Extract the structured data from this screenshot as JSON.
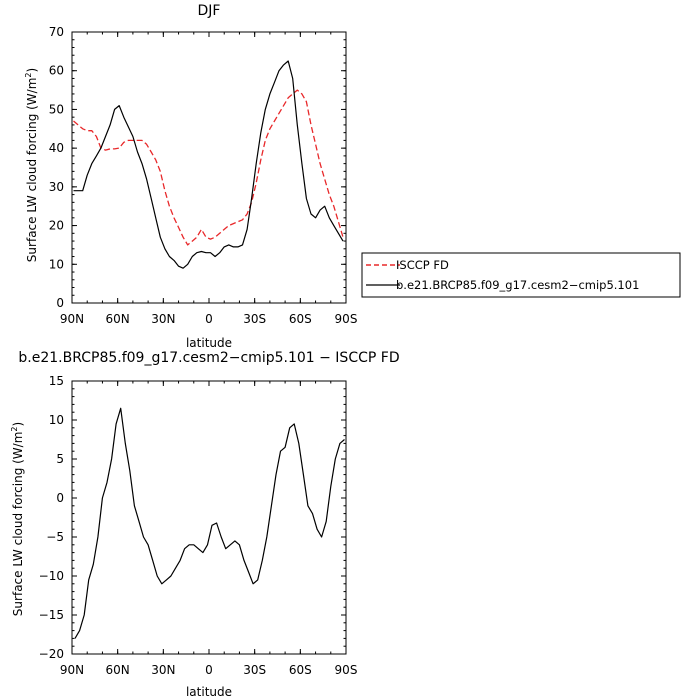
{
  "chart_data": [
    {
      "type": "line",
      "title": "DJF",
      "xlabel": "latitude",
      "ylabel": "Surface LW cloud forcing (W/m²)",
      "ylabel_main": "Surface LW cloud forcing (W/m",
      "ylabel_sup": "2",
      "ylabel_end": ")",
      "xlim": [
        90,
        -90
      ],
      "ylim": [
        0,
        70
      ],
      "x_ticks": [
        90,
        60,
        30,
        0,
        -30,
        -60,
        -90
      ],
      "x_tick_labels": [
        "90N",
        "60N",
        "30N",
        "0",
        "30S",
        "60S",
        "90S"
      ],
      "y_ticks": [
        0,
        10,
        20,
        30,
        40,
        50,
        60,
        70
      ],
      "y_tick_labels": [
        "0",
        "10",
        "20",
        "30",
        "40",
        "50",
        "60",
        "70"
      ],
      "legend_position": "right",
      "series": [
        {
          "name": "ISCCP FD",
          "color": "#e8282a",
          "dashed": true,
          "x": [
            89,
            86,
            83,
            80,
            77,
            74,
            71,
            68,
            65,
            62,
            59,
            56,
            53,
            50,
            47,
            44,
            41,
            38,
            35,
            32,
            29,
            26,
            23,
            20,
            17,
            14,
            11,
            8,
            5,
            2,
            -1,
            -4,
            -7,
            -10,
            -13,
            -16,
            -19,
            -22,
            -25,
            -28,
            -31,
            -34,
            -37,
            -40,
            -43,
            -46,
            -49,
            -52,
            -55,
            -58,
            -61,
            -64,
            -67,
            -70,
            -73,
            -76,
            -79,
            -82,
            -85,
            -88
          ],
          "y": [
            47,
            46,
            45,
            44.5,
            44.5,
            43,
            40,
            39.5,
            39.8,
            39.8,
            40,
            41.5,
            42,
            42,
            42,
            42,
            41,
            39,
            37,
            34,
            29,
            25,
            22,
            19.5,
            17,
            15,
            16,
            17,
            19,
            17,
            16.5,
            17,
            18,
            19,
            20,
            20.5,
            21,
            21.5,
            23,
            26,
            31,
            37,
            42,
            45,
            47,
            49,
            51,
            53,
            54,
            55,
            54,
            52,
            46,
            41,
            36,
            32,
            28,
            25,
            21,
            17
          ]
        },
        {
          "name": "b.e21.BRCP85.f09_g17.cesm2−cmip5.101",
          "color": "#000000",
          "dashed": false,
          "x": [
            89,
            86,
            83,
            80,
            77,
            74,
            71,
            68,
            65,
            62,
            59,
            56,
            53,
            50,
            47,
            44,
            41,
            38,
            35,
            32,
            29,
            26,
            23,
            20,
            17,
            14,
            11,
            8,
            5,
            2,
            -1,
            -4,
            -7,
            -10,
            -13,
            -16,
            -19,
            -22,
            -25,
            -28,
            -31,
            -34,
            -37,
            -40,
            -43,
            -46,
            -49,
            -52,
            -55,
            -58,
            -61,
            -64,
            -67,
            -70,
            -73,
            -76,
            -79,
            -82,
            -85,
            -88
          ],
          "y": [
            29,
            29,
            29,
            33,
            36,
            38,
            40,
            43,
            46,
            50,
            51,
            48,
            45.5,
            43,
            39,
            36,
            32,
            27,
            22,
            17,
            14,
            12,
            11,
            9.5,
            9,
            10,
            12,
            13,
            13.3,
            13,
            13,
            12,
            13,
            14.5,
            15,
            14.5,
            14.5,
            15,
            19,
            27,
            36,
            44,
            50,
            54,
            57,
            60,
            61.5,
            62.5,
            58,
            46,
            36,
            27,
            23,
            22,
            24,
            25,
            22,
            20,
            18,
            16
          ]
        }
      ]
    },
    {
      "type": "line",
      "title": "b.e21.BRCP85.f09_g17.cesm2−cmip5.101 − ISCCP FD",
      "xlabel": "latitude",
      "ylabel": "Surface LW cloud forcing (W/m²)",
      "ylabel_main": "Surface LW cloud forcing (W/m",
      "ylabel_sup": "2",
      "ylabel_end": ")",
      "xlim": [
        90,
        -90
      ],
      "ylim": [
        -20,
        15
      ],
      "x_ticks": [
        90,
        60,
        30,
        0,
        -30,
        -60,
        -90
      ],
      "x_tick_labels": [
        "90N",
        "60N",
        "30N",
        "0",
        "30S",
        "60S",
        "90S"
      ],
      "y_ticks": [
        -20,
        -15,
        -10,
        -5,
        0,
        5,
        10,
        15
      ],
      "y_tick_labels": [
        "−20",
        "−15",
        "−10",
        "−5",
        "0",
        "5",
        "10",
        "15"
      ],
      "series": [
        {
          "color": "#000000",
          "dashed": false,
          "x": [
            88,
            85,
            82,
            79,
            76,
            73,
            70,
            67,
            64,
            61,
            58,
            55,
            52,
            49,
            46,
            43,
            40,
            37,
            34,
            31,
            28,
            25,
            22,
            19,
            16,
            13,
            10,
            7,
            4,
            1,
            -2,
            -5,
            -8,
            -11,
            -14,
            -17,
            -20,
            -23,
            -26,
            -29,
            -32,
            -35,
            -38,
            -41,
            -44,
            -47,
            -50,
            -53,
            -56,
            -59,
            -62,
            -65,
            -68,
            -71,
            -74,
            -77,
            -80,
            -83,
            -86,
            -89
          ],
          "y": [
            -18,
            -17,
            -15,
            -10.5,
            -8.5,
            -5,
            0,
            2,
            5,
            9.5,
            11.5,
            7,
            3.5,
            -1,
            -3,
            -5,
            -6,
            -8,
            -10,
            -11,
            -10.5,
            -10,
            -9,
            -8,
            -6.5,
            -6,
            -6,
            -6.5,
            -7,
            -6,
            -3.5,
            -3.2,
            -5,
            -6.5,
            -6,
            -5.5,
            -6,
            -8,
            -9.5,
            -11,
            -10.5,
            -8,
            -5,
            -1,
            3,
            6,
            6.5,
            9,
            9.5,
            7,
            3,
            -1,
            -2,
            -4,
            -5,
            -3,
            1.5,
            5,
            7,
            7.5
          ]
        }
      ]
    }
  ]
}
